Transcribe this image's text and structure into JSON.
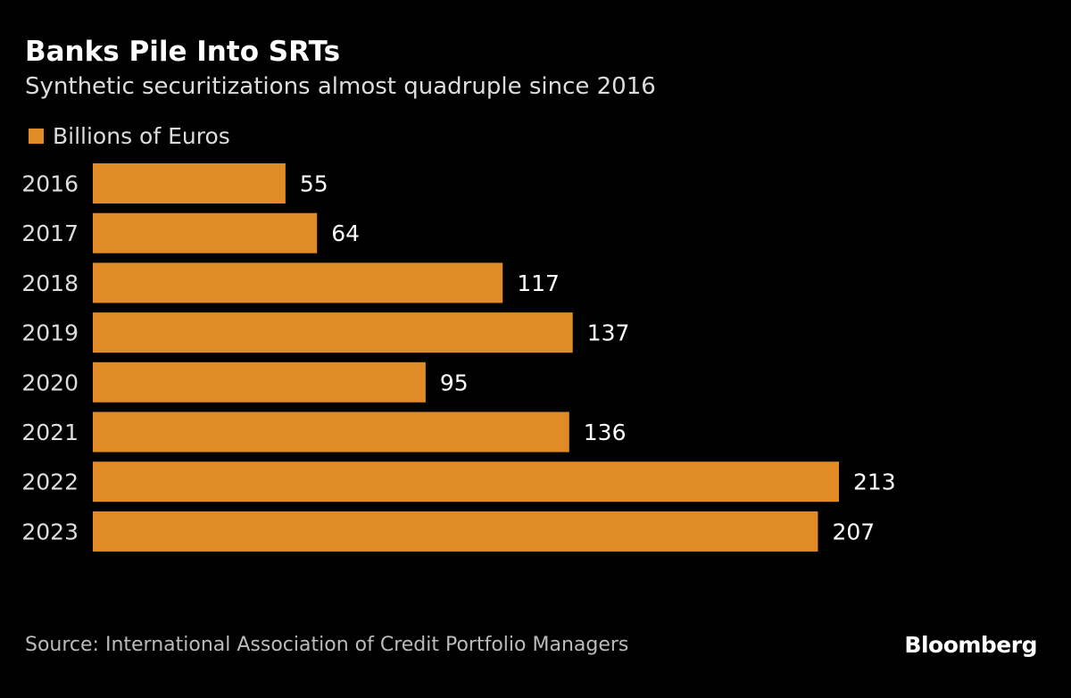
{
  "chart_data": {
    "type": "bar",
    "orientation": "horizontal",
    "title": "Banks Pile Into SRTs",
    "subtitle": "Synthetic securitizations almost quadruple since 2016",
    "categories": [
      "2016",
      "2017",
      "2018",
      "2019",
      "2020",
      "2021",
      "2022",
      "2023"
    ],
    "series": [
      {
        "name": "Billions of Euros",
        "values": [
          55,
          64,
          117,
          137,
          95,
          136,
          213,
          207
        ],
        "color": "#E08B25"
      }
    ],
    "xlim": [
      0,
      213
    ],
    "grid": false,
    "legend": "top-left",
    "data_labels": true
  },
  "source": "Source: International Association of Credit Portfolio Managers",
  "logo": "Bloomberg",
  "colors": {
    "background": "#000000",
    "bar": "#E08B25"
  }
}
